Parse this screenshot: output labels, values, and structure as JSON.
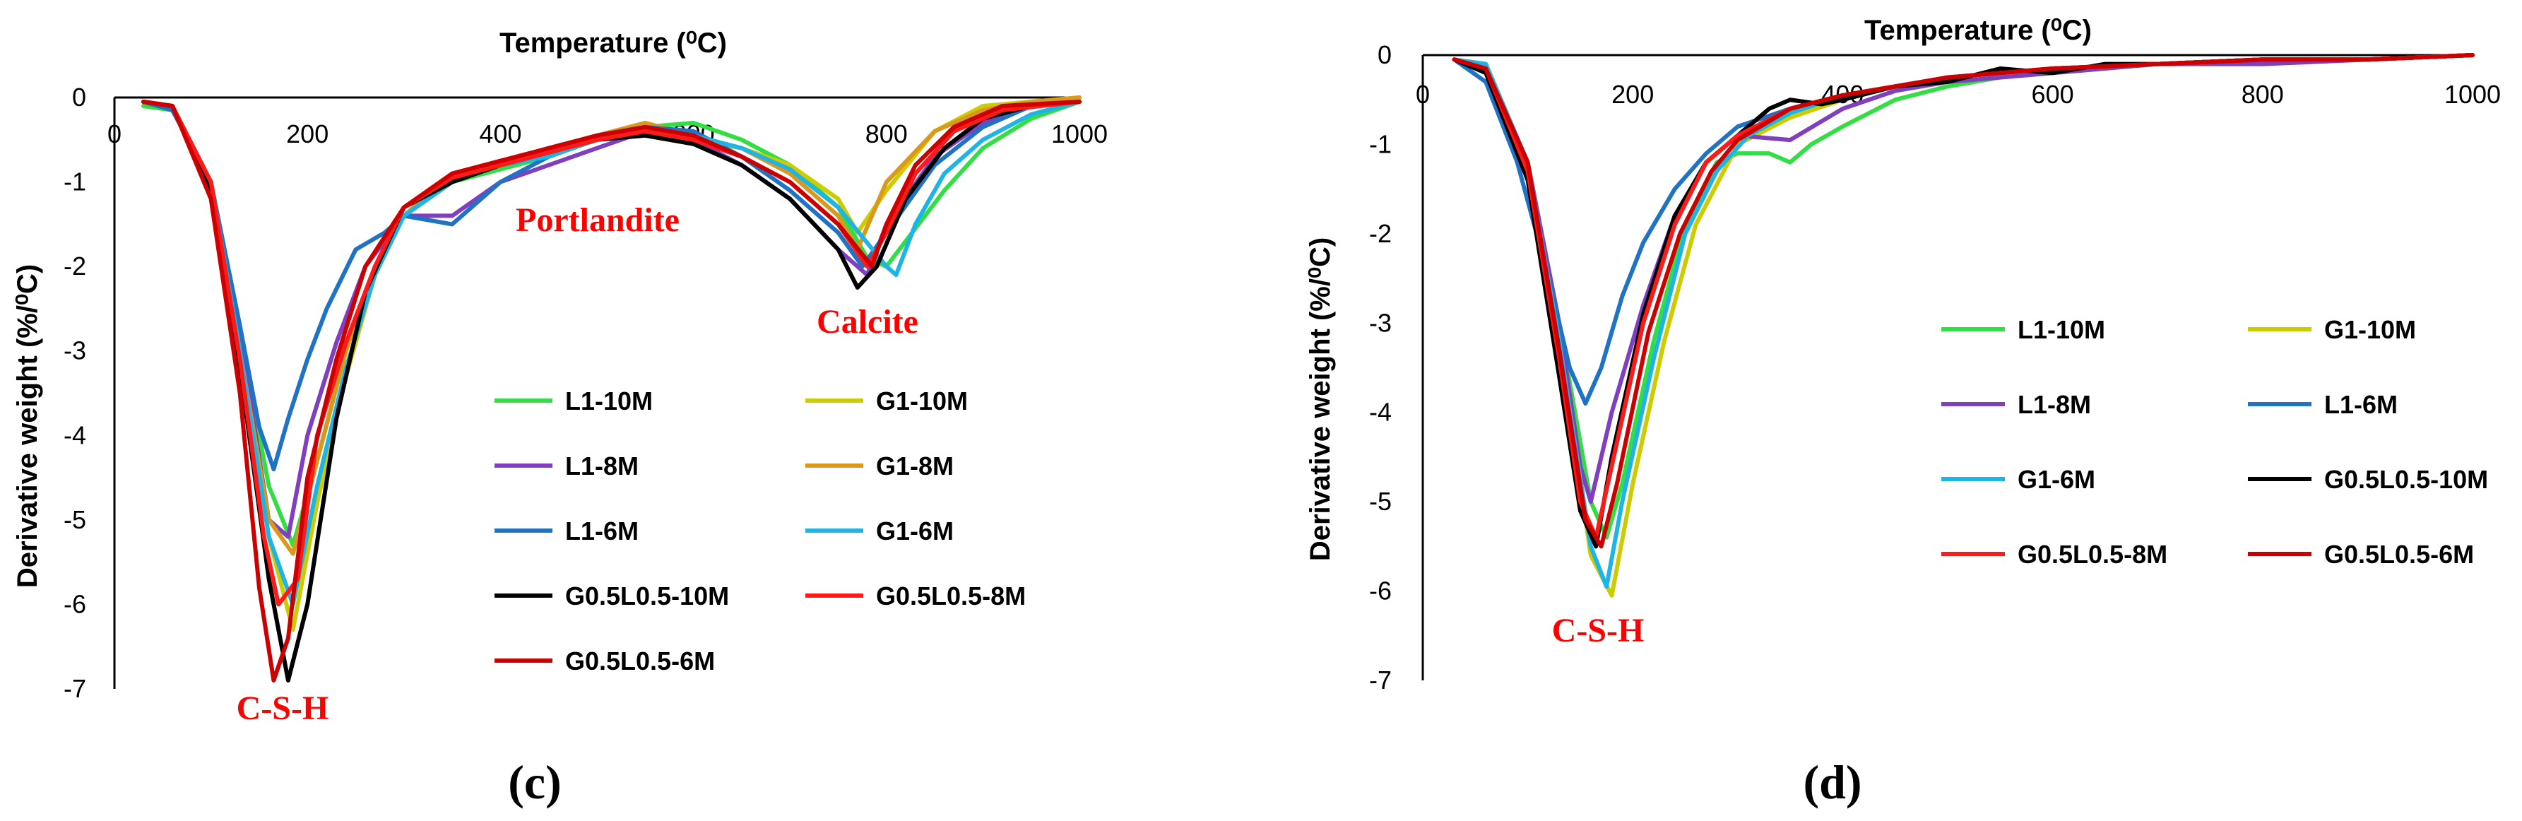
{
  "chart_data": [
    {
      "type": "line",
      "panel_label": "(c)",
      "xlabel": "Temperature (⁰C)",
      "ylabel": "Derivative weight (%/⁰C)",
      "xlim": [
        0,
        1000
      ],
      "ylim": [
        -7,
        0
      ],
      "xticks": [
        "0",
        "200",
        "400",
        "600",
        "800",
        "1000"
      ],
      "yticks": [
        "0",
        "-1",
        "-2",
        "-3",
        "-4",
        "-5",
        "-6",
        "-7"
      ],
      "annotations": [
        "Portlandite",
        "Calcite",
        "C-S-H"
      ],
      "legend": [
        "L1-10M",
        "G1-10M",
        "L1-8M",
        "G1-8M",
        "L1-6M",
        "G1-6M",
        "G0.5L0.5-10M",
        "G0.5L0.5-8M",
        "G0.5L0.5-6M"
      ],
      "series": [
        {
          "name": "L1-10M",
          "color": "#33dd44",
          "x": [
            30,
            60,
            100,
            130,
            160,
            185,
            210,
            240,
            270,
            300,
            350,
            400,
            450,
            500,
            550,
            600,
            650,
            700,
            750,
            780,
            800,
            820,
            860,
            900,
            950,
            1000
          ],
          "y": [
            -0.1,
            -0.15,
            -1.0,
            -2.8,
            -4.6,
            -5.3,
            -4.3,
            -3.0,
            -2.0,
            -1.4,
            -1.0,
            -0.85,
            -0.7,
            -0.5,
            -0.35,
            -0.3,
            -0.5,
            -0.8,
            -1.3,
            -1.9,
            -2.0,
            -1.7,
            -1.1,
            -0.6,
            -0.25,
            -0.05
          ]
        },
        {
          "name": "G1-10M",
          "color": "#cccc00",
          "x": [
            30,
            60,
            100,
            130,
            160,
            185,
            210,
            240,
            270,
            300,
            350,
            400,
            450,
            500,
            550,
            600,
            650,
            700,
            750,
            770,
            800,
            850,
            900,
            950,
            1000
          ],
          "y": [
            -0.05,
            -0.1,
            -1.0,
            -3.0,
            -5.2,
            -6.3,
            -4.8,
            -3.3,
            -2.1,
            -1.4,
            -1.0,
            -0.8,
            -0.7,
            -0.5,
            -0.3,
            -0.5,
            -0.6,
            -0.8,
            -1.2,
            -1.6,
            -1.1,
            -0.4,
            -0.1,
            -0.05,
            0
          ]
        },
        {
          "name": "L1-8M",
          "color": "#7f3fbf",
          "x": [
            30,
            60,
            100,
            130,
            160,
            180,
            200,
            230,
            260,
            300,
            350,
            400,
            450,
            500,
            550,
            600,
            650,
            700,
            750,
            780,
            800,
            850,
            900,
            950,
            1000
          ],
          "y": [
            -0.05,
            -0.15,
            -1.0,
            -2.8,
            -5.0,
            -5.2,
            -4.0,
            -2.9,
            -2.0,
            -1.4,
            -1.4,
            -1.0,
            -0.8,
            -0.6,
            -0.4,
            -0.5,
            -0.8,
            -1.2,
            -1.8,
            -2.1,
            -1.5,
            -0.7,
            -0.3,
            -0.1,
            -0.05
          ]
        },
        {
          "name": "G1-8M",
          "color": "#d99a1b",
          "x": [
            30,
            60,
            100,
            130,
            160,
            185,
            210,
            240,
            270,
            300,
            350,
            400,
            450,
            500,
            550,
            600,
            650,
            700,
            750,
            770,
            800,
            850,
            900,
            950,
            1000
          ],
          "y": [
            -0.05,
            -0.1,
            -1.0,
            -3.0,
            -5.0,
            -5.4,
            -4.3,
            -3.0,
            -2.0,
            -1.4,
            -0.9,
            -0.75,
            -0.65,
            -0.45,
            -0.3,
            -0.45,
            -0.6,
            -0.9,
            -1.4,
            -1.8,
            -1.0,
            -0.4,
            -0.15,
            -0.05,
            0
          ]
        },
        {
          "name": "L1-6M",
          "color": "#1f72c4",
          "x": [
            30,
            60,
            100,
            130,
            150,
            165,
            180,
            200,
            220,
            250,
            280,
            300,
            350,
            400,
            450,
            500,
            550,
            600,
            650,
            700,
            750,
            775,
            800,
            850,
            900,
            950,
            1000
          ],
          "y": [
            -0.05,
            -0.15,
            -1.0,
            -2.7,
            -3.9,
            -4.4,
            -3.8,
            -3.1,
            -2.5,
            -1.8,
            -1.6,
            -1.4,
            -1.5,
            -1.0,
            -0.7,
            -0.45,
            -0.35,
            -0.4,
            -0.7,
            -1.1,
            -1.6,
            -2.0,
            -1.6,
            -0.8,
            -0.35,
            -0.1,
            -0.05
          ]
        },
        {
          "name": "G1-6M",
          "color": "#1fb4e6",
          "x": [
            30,
            60,
            100,
            130,
            160,
            185,
            210,
            240,
            270,
            300,
            350,
            400,
            450,
            500,
            550,
            600,
            650,
            700,
            750,
            800,
            810,
            830,
            860,
            900,
            950,
            1000
          ],
          "y": [
            -0.05,
            -0.1,
            -1.0,
            -3.0,
            -5.2,
            -6.0,
            -4.6,
            -3.2,
            -2.1,
            -1.4,
            -1.0,
            -0.8,
            -0.7,
            -0.5,
            -0.35,
            -0.45,
            -0.6,
            -0.85,
            -1.3,
            -2.0,
            -2.1,
            -1.5,
            -0.9,
            -0.5,
            -0.2,
            -0.05
          ]
        },
        {
          "name": "G0.5L0.5-10M",
          "color": "#000000",
          "x": [
            30,
            60,
            100,
            130,
            160,
            180,
            200,
            230,
            260,
            300,
            350,
            400,
            450,
            500,
            550,
            600,
            650,
            700,
            750,
            770,
            790,
            820,
            860,
            900,
            950,
            1000
          ],
          "y": [
            -0.05,
            -0.1,
            -1.1,
            -3.2,
            -5.7,
            -6.9,
            -6.0,
            -3.8,
            -2.3,
            -1.3,
            -1.0,
            -0.8,
            -0.65,
            -0.5,
            -0.45,
            -0.55,
            -0.8,
            -1.2,
            -1.8,
            -2.25,
            -2.0,
            -1.2,
            -0.6,
            -0.25,
            -0.1,
            -0.05
          ]
        },
        {
          "name": "G0.5L0.5-8M",
          "color": "#ff1a1a",
          "x": [
            30,
            60,
            100,
            130,
            155,
            170,
            190,
            210,
            240,
            270,
            300,
            350,
            400,
            450,
            500,
            550,
            600,
            650,
            700,
            750,
            780,
            800,
            830,
            870,
            920,
            1000
          ],
          "y": [
            -0.05,
            -0.1,
            -1.0,
            -3.1,
            -5.2,
            -6.0,
            -5.7,
            -4.0,
            -2.9,
            -2.0,
            -1.3,
            -0.95,
            -0.8,
            -0.65,
            -0.5,
            -0.4,
            -0.5,
            -0.7,
            -1.0,
            -1.5,
            -2.0,
            -1.6,
            -0.9,
            -0.4,
            -0.15,
            -0.05
          ]
        },
        {
          "name": "G0.5L0.5-6M",
          "color": "#cc0000",
          "x": [
            30,
            60,
            100,
            130,
            150,
            165,
            180,
            200,
            230,
            260,
            300,
            350,
            400,
            450,
            500,
            550,
            600,
            650,
            700,
            750,
            785,
            800,
            830,
            870,
            920,
            1000
          ],
          "y": [
            -0.05,
            -0.1,
            -1.2,
            -3.5,
            -5.8,
            -6.9,
            -6.4,
            -4.5,
            -3.1,
            -2.0,
            -1.3,
            -0.9,
            -0.75,
            -0.6,
            -0.45,
            -0.35,
            -0.45,
            -0.7,
            -1.0,
            -1.5,
            -2.0,
            -1.5,
            -0.8,
            -0.35,
            -0.1,
            -0.05
          ]
        }
      ]
    },
    {
      "type": "line",
      "panel_label": "(d)",
      "xlabel": "Temperature (⁰C)",
      "ylabel": "Derivative weight (%/⁰C)",
      "xlim": [
        0,
        1000
      ],
      "ylim": [
        -7,
        0
      ],
      "xticks": [
        "0",
        "200",
        "400",
        "600",
        "800",
        "1000"
      ],
      "yticks": [
        "0",
        "-1",
        "-2",
        "-3",
        "-4",
        "-5",
        "-6",
        "-7"
      ],
      "annotations": [
        "C-S-H"
      ],
      "legend": [
        "L1-10M",
        "G1-10M",
        "L1-8M",
        "L1-6M",
        "G1-6M",
        "G0.5L0.5-10M",
        "G0.5L0.5-8M",
        "G0.5L0.5-6M"
      ],
      "series": [
        {
          "name": "L1-10M",
          "color": "#33dd44",
          "x": [
            30,
            60,
            100,
            130,
            160,
            175,
            190,
            220,
            250,
            280,
            300,
            330,
            350,
            370,
            400,
            450,
            500,
            550,
            600,
            650,
            700,
            800,
            900,
            1000
          ],
          "y": [
            -0.05,
            -0.15,
            -1.2,
            -3.0,
            -5.0,
            -5.4,
            -4.8,
            -3.2,
            -1.9,
            -1.2,
            -1.1,
            -1.1,
            -1.2,
            -1.0,
            -0.8,
            -0.5,
            -0.35,
            -0.25,
            -0.2,
            -0.15,
            -0.1,
            -0.1,
            -0.05,
            0
          ]
        },
        {
          "name": "G1-10M",
          "color": "#cccc00",
          "x": [
            30,
            60,
            100,
            130,
            160,
            180,
            200,
            230,
            260,
            300,
            350,
            400,
            450,
            500,
            600,
            700,
            800,
            900,
            1000
          ],
          "y": [
            -0.05,
            -0.1,
            -1.2,
            -3.2,
            -5.6,
            -6.05,
            -4.8,
            -3.2,
            -1.9,
            -1.0,
            -0.7,
            -0.5,
            -0.35,
            -0.25,
            -0.15,
            -0.1,
            -0.05,
            -0.05,
            0
          ]
        },
        {
          "name": "L1-8M",
          "color": "#7f3fbf",
          "x": [
            30,
            60,
            100,
            130,
            150,
            160,
            180,
            210,
            240,
            270,
            300,
            350,
            400,
            450,
            500,
            600,
            700,
            800,
            900,
            1000
          ],
          "y": [
            -0.05,
            -0.15,
            -1.2,
            -3.0,
            -4.6,
            -5.0,
            -4.0,
            -2.8,
            -1.8,
            -1.2,
            -0.9,
            -0.95,
            -0.6,
            -0.4,
            -0.3,
            -0.2,
            -0.1,
            -0.1,
            -0.05,
            0
          ]
        },
        {
          "name": "L1-6M",
          "color": "#1f72c4",
          "x": [
            30,
            60,
            90,
            120,
            140,
            155,
            170,
            190,
            210,
            240,
            270,
            300,
            350,
            400,
            450,
            500,
            600,
            700,
            800,
            900,
            1000
          ],
          "y": [
            -0.05,
            -0.3,
            -1.2,
            -2.5,
            -3.5,
            -3.9,
            -3.5,
            -2.7,
            -2.1,
            -1.5,
            -1.1,
            -0.8,
            -0.6,
            -0.45,
            -0.35,
            -0.25,
            -0.15,
            -0.1,
            -0.05,
            -0.05,
            0
          ]
        },
        {
          "name": "G1-6M",
          "color": "#1fb4e6",
          "x": [
            30,
            60,
            100,
            130,
            160,
            175,
            190,
            220,
            250,
            280,
            310,
            350,
            400,
            450,
            500,
            600,
            700,
            800,
            900,
            1000
          ],
          "y": [
            -0.05,
            -0.1,
            -1.2,
            -3.2,
            -5.5,
            -5.95,
            -5.0,
            -3.4,
            -2.0,
            -1.3,
            -0.9,
            -0.65,
            -0.45,
            -0.35,
            -0.25,
            -0.15,
            -0.1,
            -0.05,
            -0.05,
            0
          ]
        },
        {
          "name": "G0.5L0.5-10M",
          "color": "#000000",
          "x": [
            30,
            60,
            100,
            130,
            150,
            165,
            180,
            210,
            240,
            270,
            300,
            330,
            350,
            380,
            400,
            450,
            500,
            550,
            600,
            650,
            700,
            800,
            900,
            1000
          ],
          "y": [
            -0.05,
            -0.2,
            -1.4,
            -3.6,
            -5.1,
            -5.5,
            -4.5,
            -2.9,
            -1.8,
            -1.2,
            -0.9,
            -0.6,
            -0.5,
            -0.55,
            -0.5,
            -0.35,
            -0.3,
            -0.15,
            -0.2,
            -0.1,
            -0.1,
            -0.05,
            -0.05,
            0
          ]
        },
        {
          "name": "G0.5L0.5-8M",
          "color": "#ff1a1a",
          "x": [
            30,
            60,
            100,
            130,
            150,
            165,
            180,
            210,
            240,
            270,
            300,
            350,
            400,
            450,
            500,
            600,
            700,
            800,
            900,
            1000
          ],
          "y": [
            -0.05,
            -0.15,
            -1.3,
            -3.4,
            -5.0,
            -5.4,
            -4.6,
            -3.0,
            -1.9,
            -1.2,
            -0.9,
            -0.6,
            -0.45,
            -0.35,
            -0.25,
            -0.15,
            -0.1,
            -0.05,
            -0.05,
            0
          ]
        },
        {
          "name": "G0.5L0.5-6M",
          "color": "#cc0000",
          "x": [
            30,
            60,
            100,
            130,
            155,
            170,
            185,
            215,
            245,
            275,
            300,
            350,
            400,
            450,
            500,
            600,
            700,
            800,
            900,
            1000
          ],
          "y": [
            -0.05,
            -0.15,
            -1.2,
            -3.3,
            -5.2,
            -5.5,
            -4.8,
            -3.1,
            -2.0,
            -1.3,
            -0.95,
            -0.6,
            -0.45,
            -0.35,
            -0.25,
            -0.15,
            -0.1,
            -0.05,
            -0.05,
            0
          ]
        }
      ]
    }
  ]
}
